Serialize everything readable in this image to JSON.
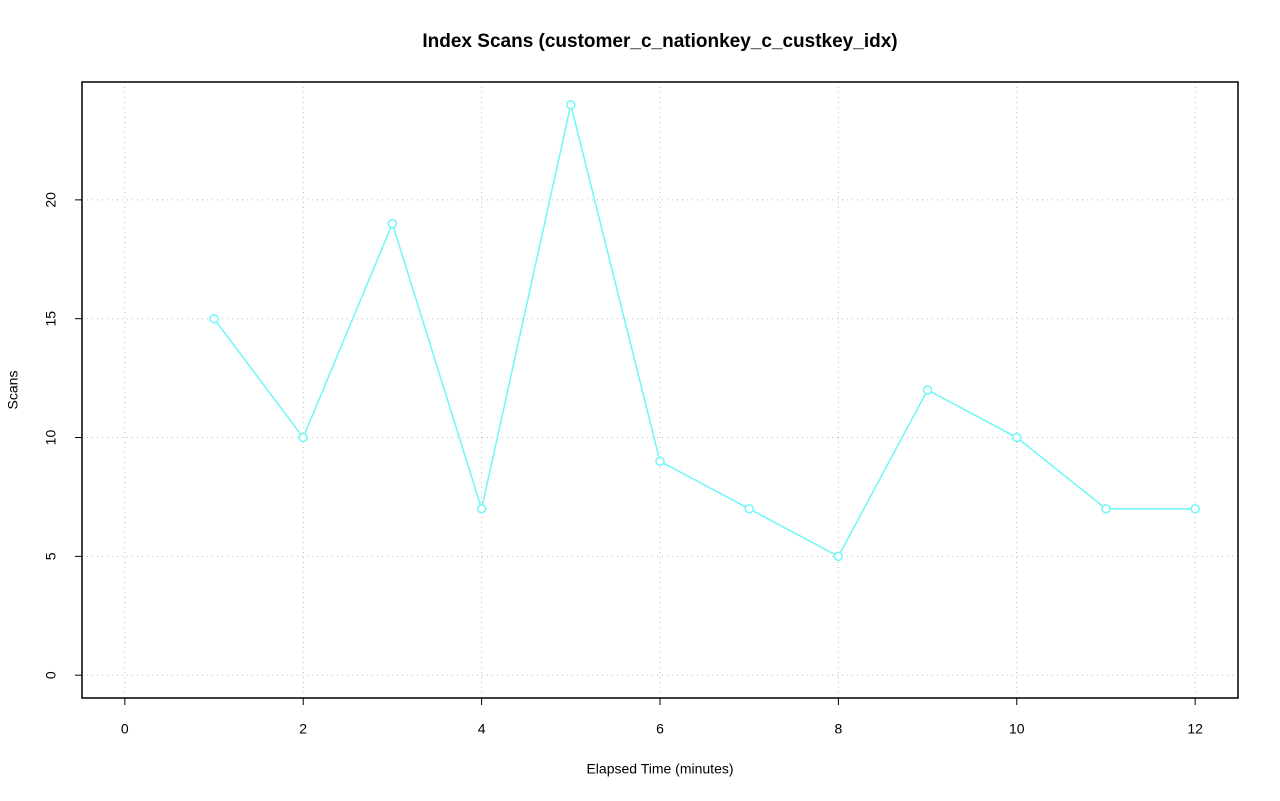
{
  "chart_data": {
    "type": "line",
    "title": "Index Scans (customer_c_nationkey_c_custkey_idx)",
    "x_label": "Elapsed Time (minutes)",
    "y_label": "Scans",
    "x": [
      1,
      2,
      3,
      4,
      5,
      6,
      7,
      8,
      9,
      10,
      11,
      12
    ],
    "series": [
      {
        "name": "customer_c_nationkey_c_custkey_idx",
        "color": "#6ff7f7",
        "values": [
          15,
          10,
          19,
          7,
          24,
          9,
          7,
          5,
          12,
          10,
          7,
          7
        ]
      }
    ],
    "xlim": [
      -0.48,
      12.48
    ],
    "ylim": [
      -0.96,
      24.96
    ],
    "xticks": [
      0,
      2,
      4,
      6,
      8,
      10,
      12
    ],
    "yticks": [
      0,
      5,
      10,
      15,
      20
    ],
    "grid": true
  }
}
